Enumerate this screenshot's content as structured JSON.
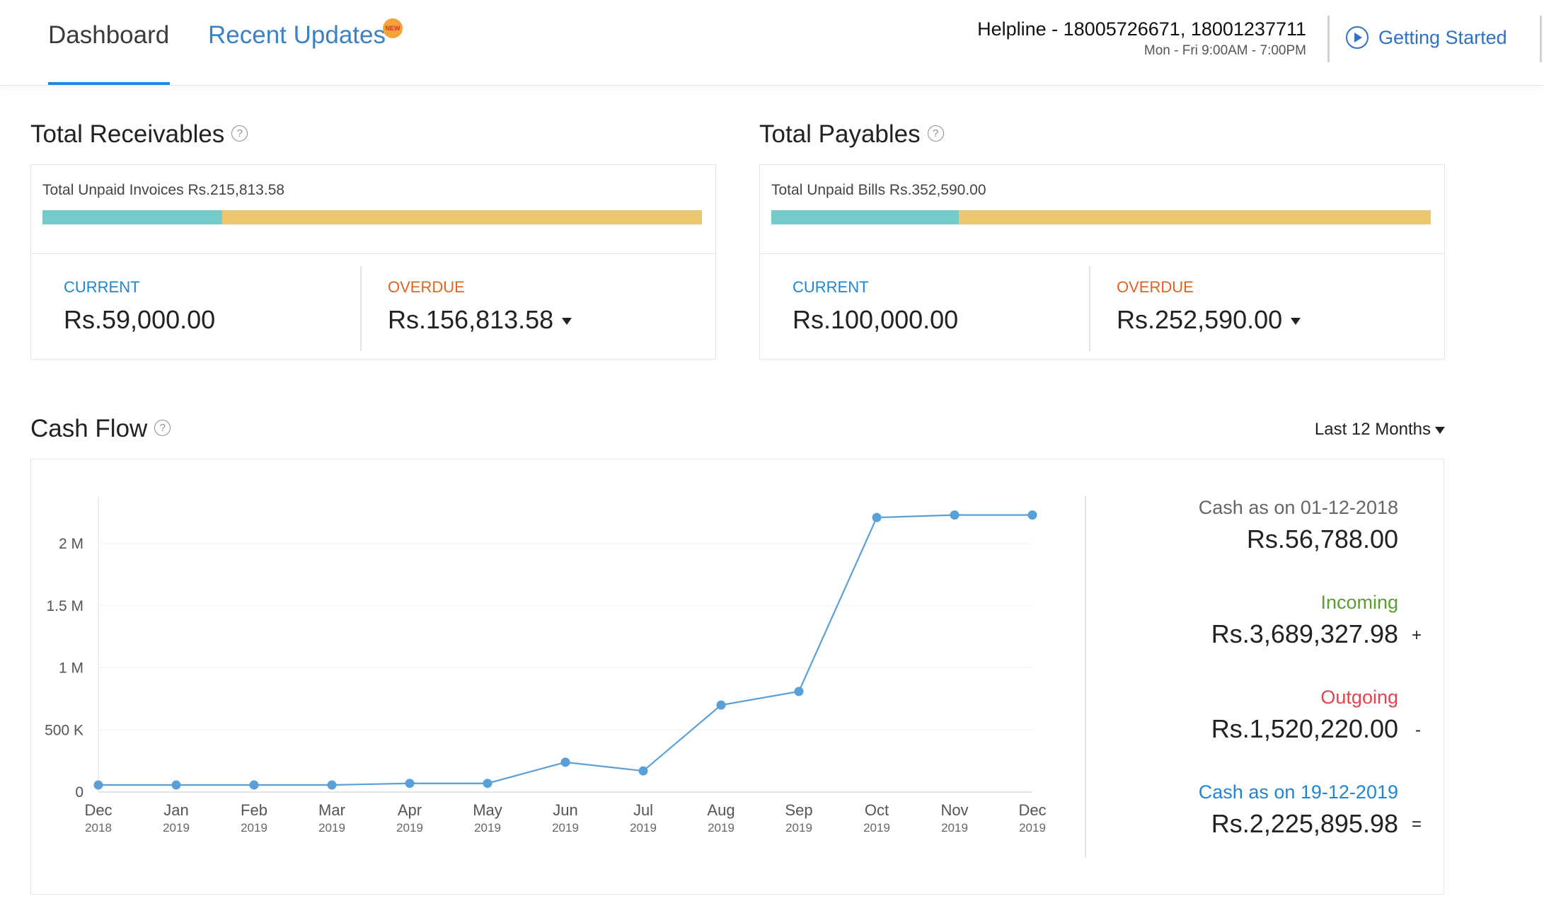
{
  "header": {
    "tabs": [
      {
        "label": "Dashboard",
        "active": true
      },
      {
        "label": "Recent Updates",
        "badge": "NEW"
      }
    ],
    "helpline": "Helpline - 18005726671, 18001237711",
    "helpline_hours": "Mon - Fri 9:00AM - 7:00PM",
    "getting_started": "Getting Started"
  },
  "receivables": {
    "title": "Total Receivables",
    "unpaid_label": "Total Unpaid Invoices Rs.215,813.58",
    "current_label": "CURRENT",
    "current_value": "Rs.59,000.00",
    "overdue_label": "OVERDUE",
    "overdue_value": "Rs.156,813.58",
    "current_fraction": 0.273
  },
  "payables": {
    "title": "Total Payables",
    "unpaid_label": "Total Unpaid Bills Rs.352,590.00",
    "current_label": "CURRENT",
    "current_value": "Rs.100,000.00",
    "overdue_label": "OVERDUE",
    "overdue_value": "Rs.252,590.00",
    "current_fraction": 0.284
  },
  "cash_flow": {
    "title": "Cash Flow",
    "period": "Last 12 Months",
    "opening_label": "Cash as on 01-12-2018",
    "opening_value": "Rs.56,788.00",
    "incoming_label": "Incoming",
    "incoming_value": "Rs.3,689,327.98",
    "incoming_op": "+",
    "outgoing_label": "Outgoing",
    "outgoing_value": "Rs.1,520,220.00",
    "outgoing_op": "-",
    "closing_label": "Cash as on 19-12-2019",
    "closing_value": "Rs.2,225,895.98",
    "closing_op": "=",
    "colors": {
      "incoming": "#5a9e2f",
      "outgoing": "#e0454f",
      "closing": "#1f85d6",
      "line": "#5aa0d8"
    }
  },
  "chart_data": {
    "type": "line",
    "x": [
      "Dec 2018",
      "Jan 2019",
      "Feb 2019",
      "Mar 2019",
      "Apr 2019",
      "May 2019",
      "Jun 2019",
      "Jul 2019",
      "Aug 2019",
      "Sep 2019",
      "Oct 2019",
      "Nov 2019",
      "Dec 2019"
    ],
    "x_tick_month": [
      "Dec",
      "Jan",
      "Feb",
      "Mar",
      "Apr",
      "May",
      "Jun",
      "Jul",
      "Aug",
      "Sep",
      "Oct",
      "Nov",
      "Dec"
    ],
    "x_tick_year": [
      "2018",
      "2019",
      "2019",
      "2019",
      "2019",
      "2019",
      "2019",
      "2019",
      "2019",
      "2019",
      "2019",
      "2019",
      "2019"
    ],
    "values": [
      56788,
      56788,
      56788,
      56788,
      70000,
      70000,
      240000,
      170000,
      700000,
      810000,
      2210000,
      2230000,
      2230000
    ],
    "y_ticks": [
      0,
      500000,
      1000000,
      1500000,
      2000000
    ],
    "y_tick_labels": [
      "0",
      "500 K",
      "1 M",
      "1.5 M",
      "2 M"
    ],
    "ylim": [
      0,
      2000000
    ],
    "grid": true
  }
}
